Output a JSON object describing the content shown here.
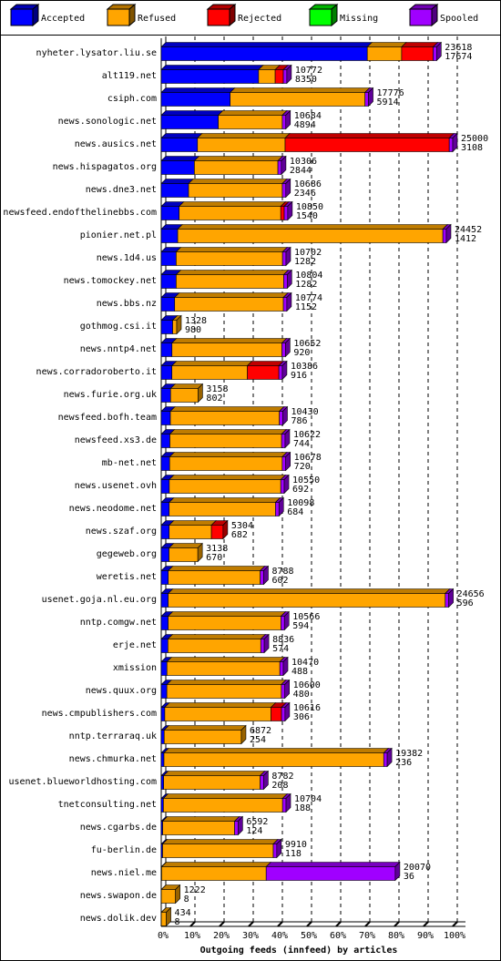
{
  "chart_data": {
    "type": "bar3d",
    "orientation": "horizontal",
    "stacked": true,
    "x_label": "Outgoing feeds (innfeed) by articles",
    "categories": [
      "nyheter.lysator.liu.se",
      "alt119.net",
      "csiph.com",
      "news.sonologic.net",
      "news.ausics.net",
      "news.hispagatos.org",
      "news.dne3.net",
      "newsfeed.endofthelinebbs.com",
      "pionier.net.pl",
      "news.1d4.us",
      "news.tomockey.net",
      "news.bbs.nz",
      "gothmog.csi.it",
      "news.nntp4.net",
      "news.corradoroberto.it",
      "news.furie.org.uk",
      "newsfeed.bofh.team",
      "newsfeed.xs3.de",
      "mb-net.net",
      "news.usenet.ovh",
      "news.neodome.net",
      "news.szaf.org",
      "gegeweb.org",
      "weretis.net",
      "usenet.goja.nl.eu.org",
      "nntp.comgw.net",
      "erje.net",
      "xmission",
      "news.quux.org",
      "news.cmpublishers.com",
      "nntp.terraraq.uk",
      "news.chmurka.net",
      "usenet.blueworldhosting.com",
      "tnetconsulting.net",
      "news.cgarbs.de",
      "fu-berlin.de",
      "news.niel.me",
      "news.swapon.de",
      "news.dolik.dev"
    ],
    "totals": [
      23618,
      10772,
      17776,
      10684,
      25000,
      10306,
      10686,
      10850,
      24452,
      10702,
      10804,
      10774,
      1328,
      10652,
      10386,
      3158,
      10430,
      10622,
      10678,
      10550,
      10098,
      5304,
      3138,
      8788,
      24656,
      10566,
      8836,
      10470,
      10600,
      10616,
      6872,
      19382,
      8782,
      10704,
      6592,
      9910,
      20070,
      1222,
      434
    ],
    "series": [
      {
        "name": "Accepted",
        "color": "#0000ff",
        "values": [
          17674,
          8350,
          5914,
          4894,
          3108,
          2844,
          2346,
          1540,
          1412,
          1282,
          1282,
          1152,
          980,
          920,
          916,
          802,
          786,
          744,
          720,
          692,
          684,
          682,
          670,
          602,
          596,
          594,
          574,
          488,
          480,
          306,
          254,
          236,
          208,
          188,
          124,
          118,
          36,
          8,
          8
        ]
      },
      {
        "name": "Refused",
        "color": "#ffa500",
        "values": [
          2944,
          1422,
          11562,
          5490,
          7517,
          7162,
          8040,
          8710,
          22740,
          9120,
          9222,
          9322,
          348,
          9432,
          6470,
          2356,
          9344,
          9578,
          9658,
          9558,
          9114,
          3622,
          2468,
          7886,
          23760,
          9672,
          7962,
          9682,
          9820,
          9110,
          6618,
          18846,
          8274,
          10216,
          6168,
          9492,
          8964,
          1214,
          426
        ]
      },
      {
        "name": "Rejected",
        "color": "#ff0000",
        "values": [
          2700,
          700,
          0,
          0,
          14075,
          0,
          0,
          300,
          0,
          0,
          0,
          0,
          0,
          0,
          2700,
          0,
          0,
          0,
          0,
          0,
          0,
          1000,
          0,
          0,
          0,
          0,
          0,
          0,
          0,
          900,
          0,
          0,
          0,
          0,
          0,
          0,
          0,
          0,
          0
        ]
      },
      {
        "name": "Missing",
        "color": "#00ff00",
        "values": [
          0,
          0,
          0,
          0,
          0,
          0,
          0,
          0,
          0,
          0,
          0,
          0,
          0,
          0,
          0,
          0,
          0,
          0,
          0,
          0,
          0,
          0,
          0,
          0,
          0,
          0,
          0,
          0,
          0,
          0,
          0,
          0,
          0,
          0,
          0,
          0,
          0,
          0,
          0
        ]
      },
      {
        "name": "Spooled",
        "color": "#a000ff",
        "values": [
          300,
          300,
          300,
          300,
          300,
          300,
          300,
          300,
          300,
          300,
          300,
          300,
          0,
          300,
          300,
          0,
          300,
          300,
          300,
          300,
          300,
          0,
          0,
          300,
          300,
          300,
          300,
          300,
          300,
          300,
          0,
          300,
          300,
          300,
          300,
          300,
          11070,
          0,
          0
        ]
      }
    ],
    "xlim": [
      0,
      25000
    ],
    "xticks": [
      {
        "value": 0,
        "label": "0%"
      },
      {
        "value": 2500,
        "label": "10%"
      },
      {
        "value": 5000,
        "label": "20%"
      },
      {
        "value": 7500,
        "label": "30%"
      },
      {
        "value": 10000,
        "label": "40%"
      },
      {
        "value": 12500,
        "label": "50%"
      },
      {
        "value": 15000,
        "label": "60%"
      },
      {
        "value": 17500,
        "label": "70%"
      },
      {
        "value": 20000,
        "label": "80%"
      },
      {
        "value": 22500,
        "label": "90%"
      },
      {
        "value": 25000,
        "label": "100%"
      }
    ],
    "grid": true
  }
}
